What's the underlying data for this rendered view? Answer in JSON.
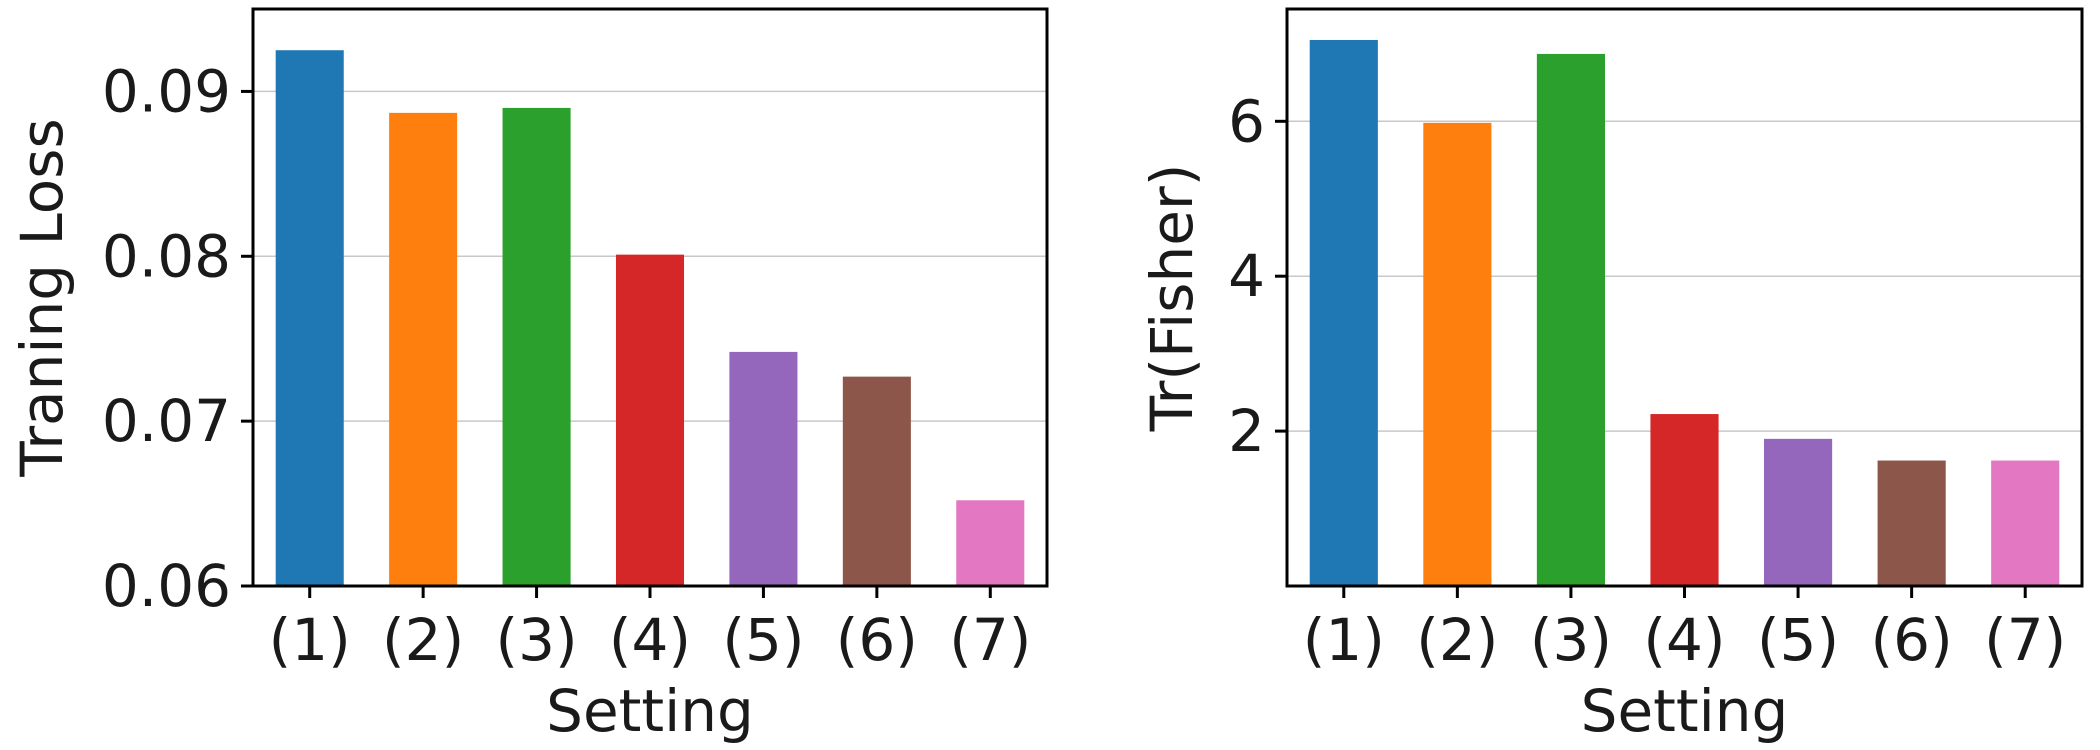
{
  "chart_data": [
    {
      "type": "bar",
      "categories": [
        "(1)",
        "(2)",
        "(3)",
        "(4)",
        "(5)",
        "(6)",
        "(7)"
      ],
      "values": [
        0.0925,
        0.0887,
        0.089,
        0.0801,
        0.0742,
        0.0727,
        0.0652
      ],
      "colors": [
        "#1f77b4",
        "#ff7f0e",
        "#2ca02c",
        "#d62728",
        "#9467bd",
        "#8c564b",
        "#e377c2"
      ],
      "title": "",
      "xlabel": "Setting",
      "ylabel": "Traning Loss",
      "ylim": [
        0.06,
        0.095
      ],
      "yticks": [
        0.06,
        0.07,
        0.08,
        0.09
      ],
      "ytick_labels": [
        "0.06",
        "0.07",
        "0.08",
        "0.09"
      ],
      "grid": "y"
    },
    {
      "type": "bar",
      "categories": [
        "(1)",
        "(2)",
        "(3)",
        "(4)",
        "(5)",
        "(6)",
        "(7)"
      ],
      "values": [
        7.05,
        5.98,
        6.87,
        2.22,
        1.9,
        1.62,
        1.62
      ],
      "colors": [
        "#1f77b4",
        "#ff7f0e",
        "#2ca02c",
        "#d62728",
        "#9467bd",
        "#8c564b",
        "#e377c2"
      ],
      "title": "",
      "xlabel": "Setting",
      "ylabel": "Tr(Fisher)",
      "ylim": [
        0,
        7.45
      ],
      "yticks": [
        2,
        4,
        6
      ],
      "ytick_labels": [
        "2",
        "4",
        "6"
      ],
      "grid": "y"
    }
  ]
}
